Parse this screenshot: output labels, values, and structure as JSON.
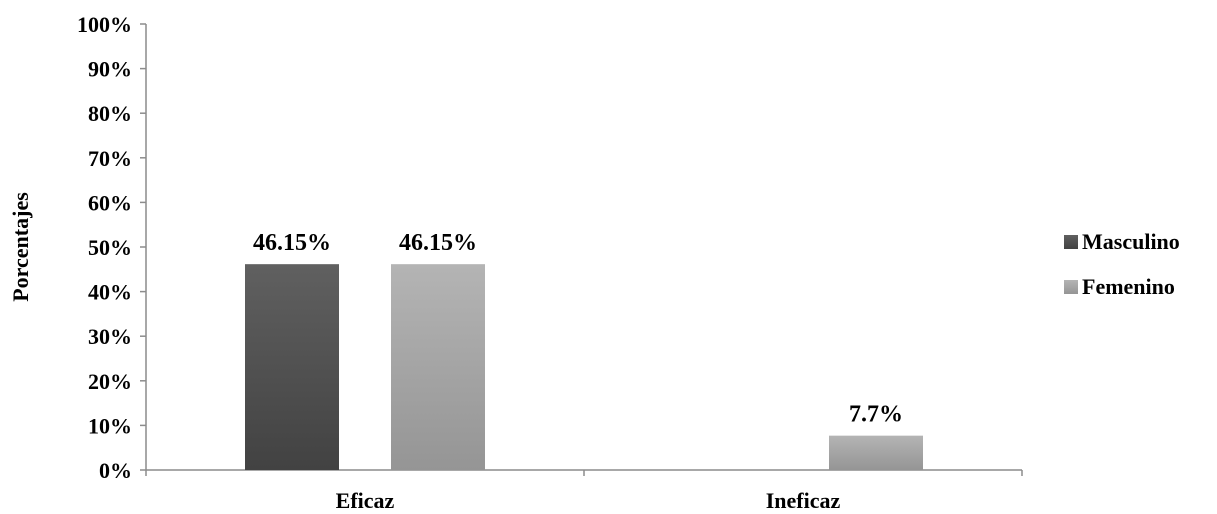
{
  "chart_data": {
    "type": "bar",
    "categories": [
      "Eficaz",
      "Ineficaz"
    ],
    "series": [
      {
        "name": "Masculino",
        "values": [
          46.15,
          null
        ],
        "labels": [
          "46.15%",
          ""
        ],
        "color": "#555555"
      },
      {
        "name": "Femenino",
        "values": [
          46.15,
          7.7
        ],
        "labels": [
          "46.15%",
          "7.7%"
        ],
        "color": "#a6a6a6"
      }
    ],
    "ylabel": "Porcentajes",
    "xlabel": "",
    "ylim": [
      0,
      100
    ],
    "yticks": [
      "0%",
      "10%",
      "20%",
      "30%",
      "40%",
      "50%",
      "60%",
      "70%",
      "80%",
      "90%",
      "100%"
    ],
    "legend_position": "right",
    "grid": false
  }
}
